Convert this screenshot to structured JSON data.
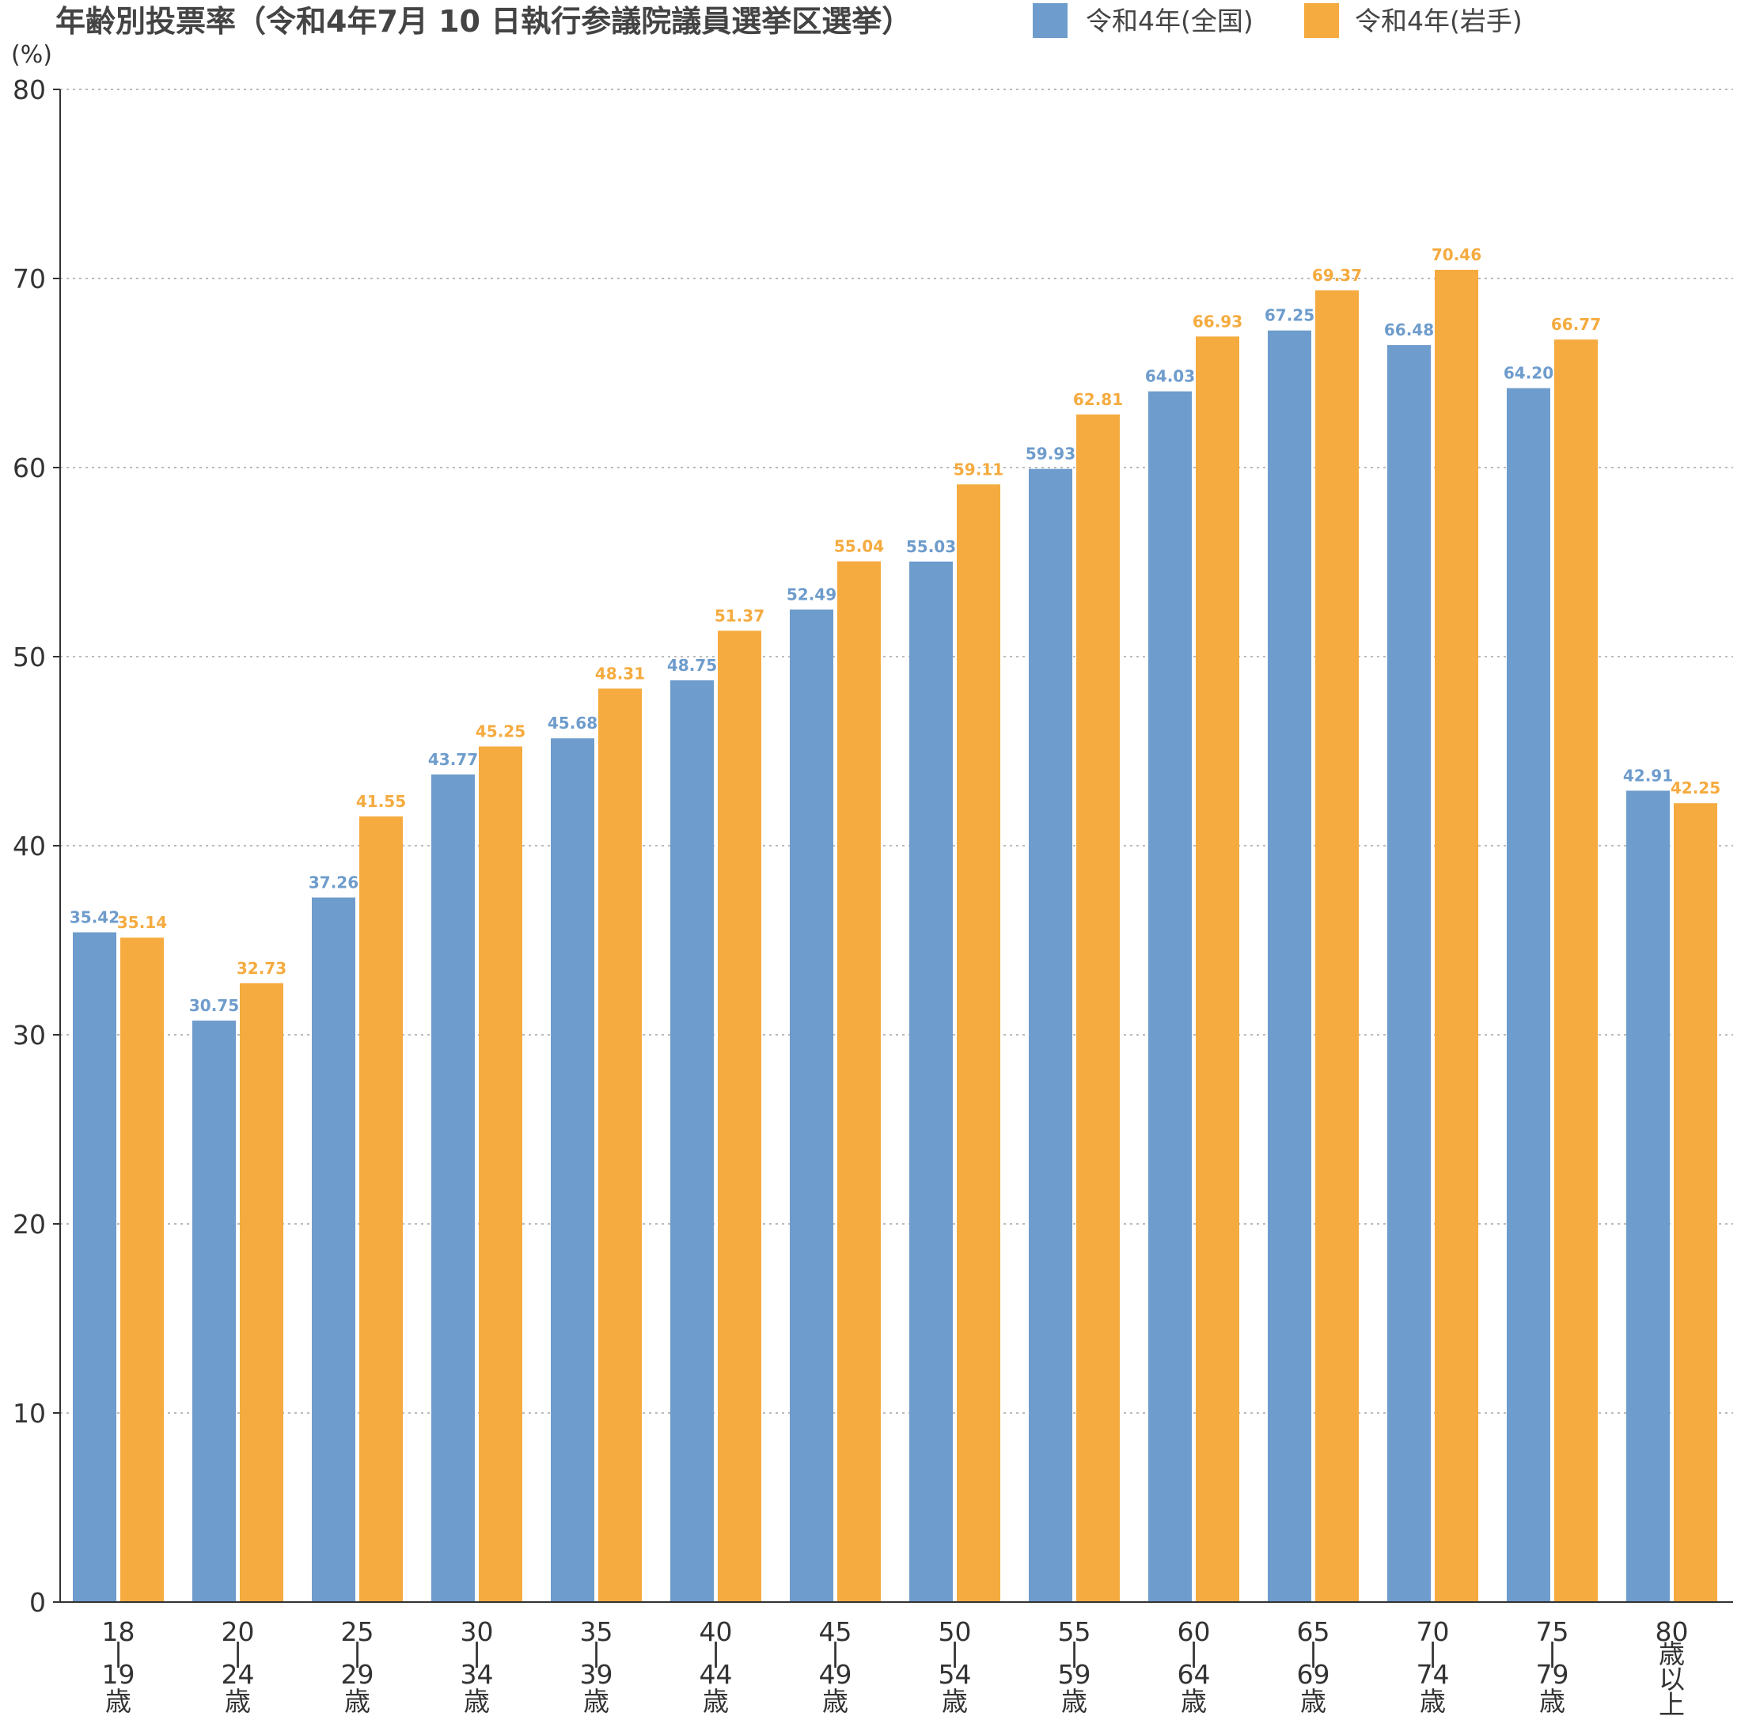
{
  "chart_data": {
    "type": "bar",
    "title": "年齢別投票率（令和4年7月 10 日執行参議院議員選挙区選挙）",
    "ylabel": "(%)",
    "ylim": [
      0,
      80
    ],
    "yticks": [
      0,
      10,
      20,
      30,
      40,
      50,
      60,
      70,
      80
    ],
    "grid": true,
    "legend_position": "top",
    "categories": [
      {
        "id": "18-19",
        "lines": [
          "18",
          "|",
          "19",
          "歳"
        ]
      },
      {
        "id": "20-24",
        "lines": [
          "20",
          "|",
          "24",
          "歳"
        ]
      },
      {
        "id": "25-29",
        "lines": [
          "25",
          "|",
          "29",
          "歳"
        ]
      },
      {
        "id": "30-34",
        "lines": [
          "30",
          "|",
          "34",
          "歳"
        ]
      },
      {
        "id": "35-39",
        "lines": [
          "35",
          "|",
          "39",
          "歳"
        ]
      },
      {
        "id": "40-44",
        "lines": [
          "40",
          "|",
          "44",
          "歳"
        ]
      },
      {
        "id": "45-49",
        "lines": [
          "45",
          "|",
          "49",
          "歳"
        ]
      },
      {
        "id": "50-54",
        "lines": [
          "50",
          "|",
          "54",
          "歳"
        ]
      },
      {
        "id": "55-59",
        "lines": [
          "55",
          "|",
          "59",
          "歳"
        ]
      },
      {
        "id": "60-64",
        "lines": [
          "60",
          "|",
          "64",
          "歳"
        ]
      },
      {
        "id": "65-69",
        "lines": [
          "65",
          "|",
          "69",
          "歳"
        ]
      },
      {
        "id": "70-74",
        "lines": [
          "70",
          "|",
          "74",
          "歳"
        ]
      },
      {
        "id": "75-79",
        "lines": [
          "75",
          "|",
          "79",
          "歳"
        ]
      },
      {
        "id": "80+",
        "lines": [
          "80",
          "歳",
          "以",
          "上"
        ]
      }
    ],
    "series": [
      {
        "name": "令和4年(全国)",
        "color": "#6e9ccc",
        "values": [
          35.42,
          30.75,
          37.26,
          43.77,
          45.68,
          48.75,
          52.49,
          55.03,
          59.93,
          64.03,
          67.25,
          66.48,
          64.2,
          42.91
        ],
        "labels": [
          "35.42",
          "30.75",
          "37.26",
          "43.77",
          "45.68",
          "48.75",
          "52.49",
          "55.03",
          "59.93",
          "64.03",
          "67.25",
          "66.48",
          "64.20",
          "42.91"
        ]
      },
      {
        "name": "令和4年(岩手)",
        "color": "#f5ab3f",
        "values": [
          35.14,
          32.73,
          41.55,
          45.25,
          48.31,
          51.37,
          55.04,
          59.11,
          62.81,
          66.93,
          69.37,
          70.46,
          66.77,
          42.25
        ],
        "labels": [
          "35.14",
          "32.73",
          "41.55",
          "45.25",
          "48.31",
          "51.37",
          "55.04",
          "59.11",
          "62.81",
          "66.93",
          "69.37",
          "70.46",
          "66.77",
          "42.25"
        ]
      }
    ]
  }
}
